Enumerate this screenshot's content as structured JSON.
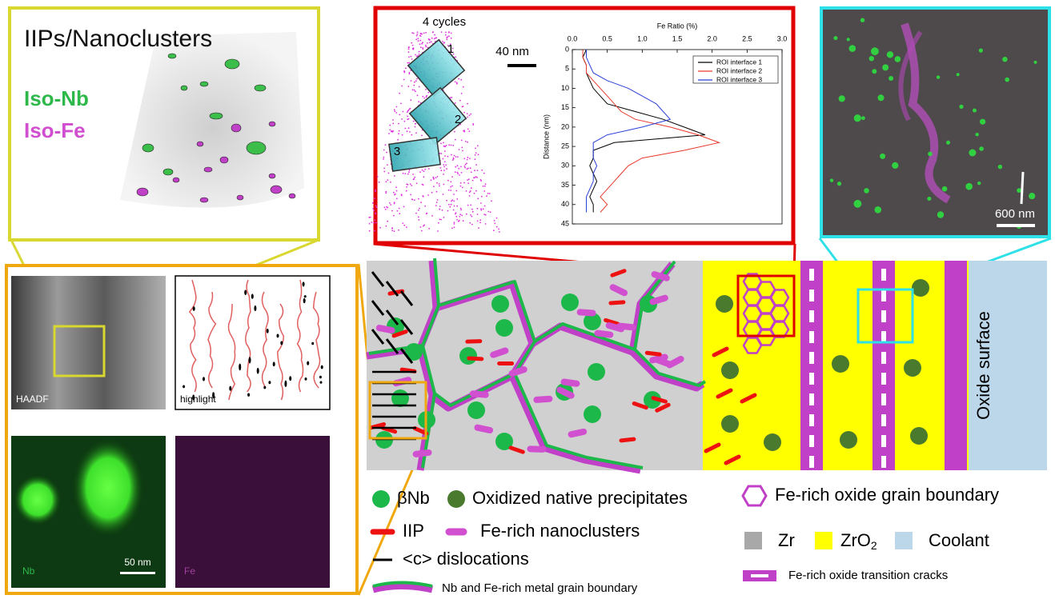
{
  "panel_3d": {
    "title": "IIPs/Nanoclusters",
    "label_nb": "Iso-Nb",
    "label_fe": "Iso-Fe"
  },
  "panel_apt": {
    "cycles_label": "4 cycles",
    "scale_label": "40 nm",
    "roi_numbers": [
      "1",
      "2",
      "3"
    ]
  },
  "fe_ratio_plot": {
    "type": "line",
    "title": "Fe Ratio (%)",
    "y_label": "Distance (nm)",
    "xlim": [
      0,
      3
    ],
    "xticks": [
      {
        "value": 0,
        "label": "0.0"
      },
      {
        "value": 0.5,
        "label": "0.5"
      },
      {
        "value": 1,
        "label": "1.0"
      },
      {
        "value": 1.5,
        "label": "1.5"
      },
      {
        "value": 2,
        "label": "2.0"
      },
      {
        "value": 2.5,
        "label": "2.5"
      },
      {
        "value": 3,
        "label": "3.0"
      }
    ],
    "ylim": [
      0,
      45
    ],
    "yticks": [
      0,
      5,
      10,
      15,
      20,
      25,
      30,
      35,
      40,
      45
    ],
    "distance": [
      0,
      2,
      4,
      6,
      8,
      10,
      12,
      14,
      16,
      18,
      20,
      22,
      24,
      26,
      28,
      30,
      32,
      34,
      36,
      38,
      40,
      42
    ],
    "series": [
      {
        "name": "ROI interface 1",
        "color": "#000000",
        "values": [
          0.2,
          0.15,
          0.2,
          0.2,
          0.25,
          0.3,
          0.4,
          0.5,
          0.9,
          1.3,
          1.6,
          1.9,
          0.6,
          0.3,
          0.3,
          0.25,
          0.3,
          0.35,
          0.3,
          0.25,
          0.3,
          0.3
        ]
      },
      {
        "name": "ROI interface 2",
        "color": "#e8392c",
        "values": [
          0.15,
          0.15,
          0.2,
          0.2,
          0.3,
          0.4,
          0.5,
          0.6,
          0.7,
          0.9,
          1.4,
          1.8,
          2.1,
          1.6,
          1.0,
          0.8,
          0.7,
          0.6,
          0.5,
          0.4,
          0.5,
          0.4
        ]
      },
      {
        "name": "ROI interface 3",
        "color": "#2a3fd6",
        "values": [
          0.2,
          0.2,
          0.25,
          0.3,
          0.5,
          0.8,
          1.0,
          1.2,
          1.3,
          1.4,
          1.0,
          0.5,
          0.3,
          0.3,
          0.3,
          0.35,
          0.3,
          0.3,
          0.25,
          0.2,
          0.2,
          0.2
        ]
      }
    ]
  },
  "panel_map": {
    "scale_label": "600 nm"
  },
  "panel_tem": {
    "haadf_label": "HAADF",
    "highlight_label": "highlight",
    "nb_label": "Nb",
    "fe_label": "Fe",
    "scale_label": "50 nm"
  },
  "schematic": {
    "surface_label": "Oxide surface"
  },
  "legend": {
    "beta_nb": "βNb",
    "oxidized": "Oxidized native precipitates",
    "oxide_gb": "Fe-rich oxide grain boundary",
    "iip": "IIP",
    "nanoclusters": "Fe-rich nanoclusters",
    "zr": "Zr",
    "zro2": {
      "text": "ZrO",
      "subscript": "2"
    },
    "coolant": "Coolant",
    "dislocations": "<c> dislocations",
    "cracks": "Fe-rich oxide transition cracks",
    "metal_gb": "Nb and Fe-rich metal grain boundary"
  }
}
